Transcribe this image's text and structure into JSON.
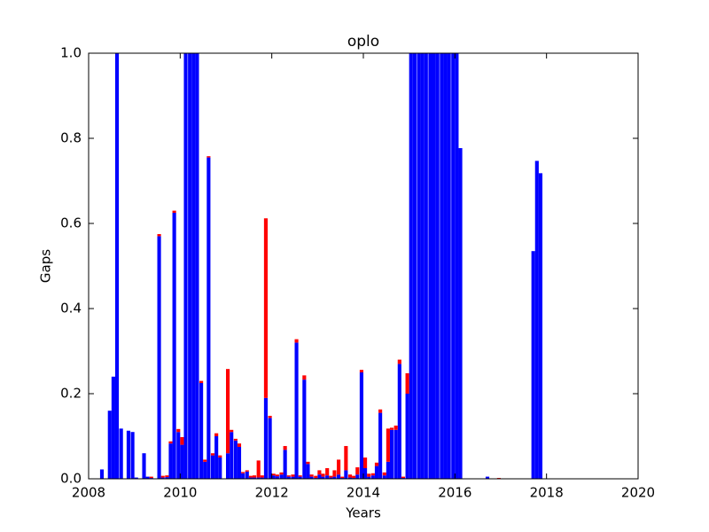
{
  "chart_data": {
    "type": "stacked_bar",
    "title": "oplo",
    "xlabel": "Years",
    "ylabel": "Gaps",
    "x": [
      2008.25,
      2008.42,
      2008.5,
      2008.58,
      2008.67,
      2008.83,
      2008.92,
      2009.0,
      2009.17,
      2009.25,
      2009.33,
      2009.5,
      2009.58,
      2009.67,
      2009.75,
      2009.83,
      2009.92,
      2010.0,
      2010.08,
      2010.17,
      2010.25,
      2010.33,
      2010.42,
      2010.5,
      2010.58,
      2010.67,
      2010.75,
      2010.83,
      2011.0,
      2011.08,
      2011.17,
      2011.25,
      2011.33,
      2011.42,
      2011.5,
      2011.58,
      2011.67,
      2011.75,
      2011.83,
      2011.92,
      2012.0,
      2012.08,
      2012.17,
      2012.25,
      2012.33,
      2012.42,
      2012.5,
      2012.58,
      2012.67,
      2012.75,
      2012.83,
      2012.92,
      2013.0,
      2013.08,
      2013.17,
      2013.25,
      2013.33,
      2013.42,
      2013.5,
      2013.58,
      2013.67,
      2013.75,
      2013.83,
      2013.92,
      2014.0,
      2014.08,
      2014.17,
      2014.25,
      2014.33,
      2014.42,
      2014.5,
      2014.58,
      2014.67,
      2014.75,
      2014.83,
      2014.92,
      2015.0,
      2015.08,
      2015.17,
      2015.25,
      2015.33,
      2015.42,
      2015.5,
      2015.58,
      2015.67,
      2015.75,
      2015.83,
      2015.92,
      2016.0,
      2016.08,
      2016.67,
      2016.92,
      2017.67,
      2017.75,
      2017.83
    ],
    "series": [
      {
        "color": "#0000ff",
        "values": [
          0.022,
          0.16,
          0.24,
          1.0,
          0.118,
          0.113,
          0.11,
          0.003,
          0.06,
          0.005,
          0.002,
          0.57,
          0.003,
          0.004,
          0.083,
          0.625,
          0.11,
          0.08,
          1,
          1,
          1,
          1,
          0.225,
          0.04,
          0.755,
          0.055,
          0.1,
          0.05,
          0.06,
          0.11,
          0.09,
          0.075,
          0.013,
          0.017,
          0.003,
          0.003,
          0.003,
          0.003,
          0.19,
          0.143,
          0.008,
          0.006,
          0.01,
          0.068,
          0.005,
          0.005,
          0.32,
          0.005,
          0.233,
          0.035,
          0.005,
          0.002,
          0.01,
          0.005,
          0.008,
          0.003,
          0.005,
          0.01,
          0.002,
          0.02,
          0.003,
          0.002,
          0.01,
          0.25,
          0.025,
          0.005,
          0.008,
          0.03,
          0.155,
          0.008,
          0.04,
          0.115,
          0.115,
          0.27,
          0.002,
          0.2,
          1,
          1,
          1,
          1,
          1,
          1,
          1,
          1,
          1,
          1,
          1,
          1,
          1,
          0.777,
          0.005,
          0,
          0.535,
          0.747,
          0.718
        ]
      },
      {
        "color": "#ff0000",
        "values": [
          0,
          0,
          0,
          0,
          0,
          0,
          0,
          0,
          0,
          0,
          0.003,
          0.005,
          0.004,
          0.004,
          0.005,
          0.005,
          0.007,
          0.018,
          0,
          0,
          0,
          0,
          0.005,
          0.005,
          0.003,
          0.005,
          0.007,
          0.005,
          0.198,
          0.005,
          0.004,
          0.008,
          0.003,
          0.003,
          0.004,
          0.005,
          0.04,
          0.005,
          0.422,
          0.005,
          0.004,
          0.004,
          0.005,
          0.009,
          0.003,
          0.005,
          0.008,
          0.003,
          0.01,
          0.005,
          0.005,
          0.005,
          0.01,
          0.007,
          0.017,
          0.004,
          0.015,
          0.035,
          0.003,
          0.057,
          0.007,
          0.005,
          0.017,
          0.006,
          0.025,
          0.007,
          0.005,
          0.008,
          0.008,
          0.007,
          0.078,
          0.005,
          0.01,
          0.01,
          0.003,
          0.048,
          0,
          0,
          0,
          0,
          0,
          0,
          0,
          0,
          0,
          0,
          0,
          0,
          0,
          0,
          0,
          0.002,
          0,
          0,
          0
        ]
      }
    ],
    "xlim": [
      2008,
      2020
    ],
    "xticks": [
      2008,
      2010,
      2012,
      2014,
      2016,
      2018,
      2020
    ],
    "ylim": [
      0,
      1
    ],
    "yticks": [
      {
        "value": 0,
        "label": "0.0"
      },
      0.2,
      0.4,
      0.6,
      0.8,
      {
        "value": 1,
        "label": "1.0"
      }
    ]
  }
}
